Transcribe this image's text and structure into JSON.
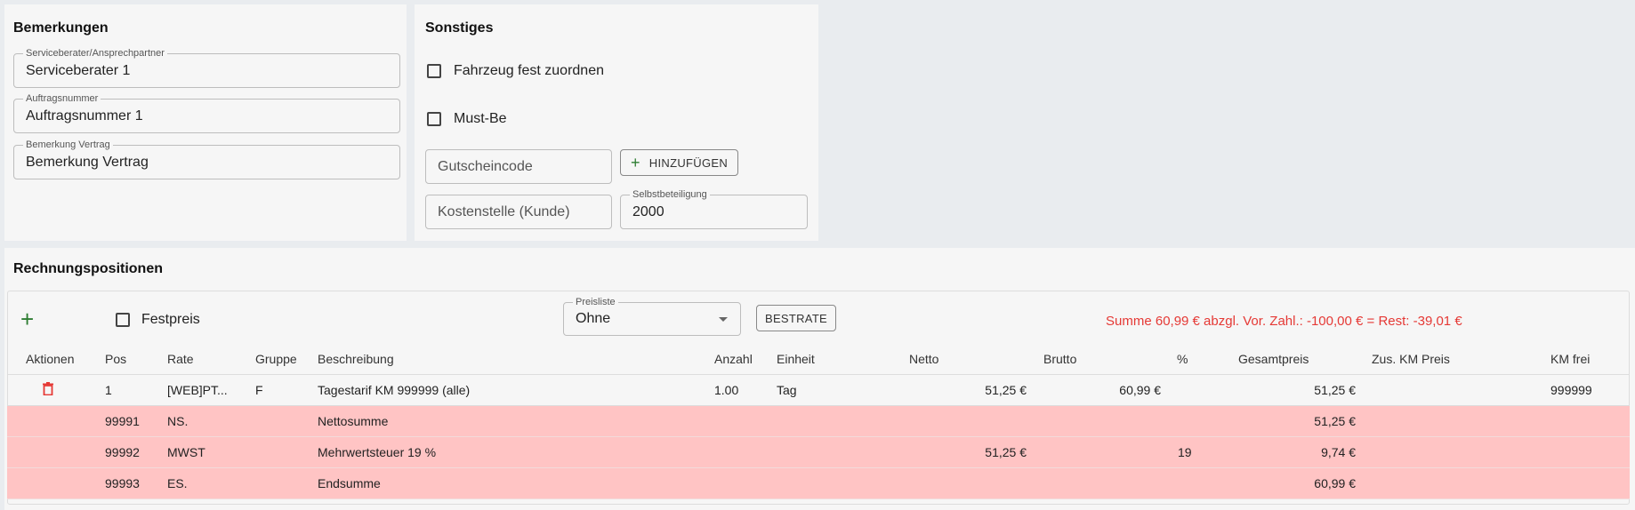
{
  "bemerkungen": {
    "title": "Bemerkungen",
    "fields": [
      {
        "label": "Serviceberater/Ansprechpartner",
        "value": "Serviceberater 1"
      },
      {
        "label": "Auftragsnummer",
        "value": "Auftragsnummer 1"
      },
      {
        "label": "Bemerkung Vertrag",
        "value": "Bemerkung Vertrag"
      }
    ]
  },
  "sonstiges": {
    "title": "Sonstiges",
    "checkbox_fahrzeug": "Fahrzeug fest zuordnen",
    "checkbox_mustbe": "Must-Be",
    "gutscheincode_placeholder": "Gutscheincode",
    "hinzufuegen_label": "HINZUFÜGEN",
    "kostenstelle_placeholder": "Kostenstelle (Kunde)",
    "selbstbeteiligung_label": "Selbstbeteiligung",
    "selbstbeteiligung_value": "2000"
  },
  "rechnung": {
    "title": "Rechnungspositionen",
    "festpreis_label": "Festpreis",
    "preisliste_label": "Preisliste",
    "preisliste_value": "Ohne",
    "bestrate_label": "BESTRATE",
    "summary": "Summe 60,99 € abzgl. Vor. Zahl.: -100,00 € = Rest: -39,01 €",
    "summary_color": "#e53935",
    "headers": [
      "Aktionen",
      "Pos",
      "Rate",
      "Gruppe",
      "Beschreibung",
      "Anzahl",
      "Einheit",
      "Netto",
      "Brutto",
      "%",
      "Gesamtpreis",
      "Zus. KM Preis",
      "KM frei"
    ],
    "rows": [
      {
        "pos": "1",
        "rate": "[WEB]PT...",
        "gruppe": "F",
        "beschreibung": "Tagestarif KM 999999 (alle)",
        "anzahl": "1.00",
        "einheit": "Tag",
        "netto": "51,25 €",
        "brutto": "60,99 €",
        "prozent": "",
        "gesamtpreis": "51,25 €",
        "zus_km": "",
        "km_frei": "999999"
      },
      {
        "pos": "99991",
        "rate": "NS.",
        "gruppe": "",
        "beschreibung": "Nettosumme",
        "anzahl": "",
        "einheit": "",
        "netto": "",
        "brutto": "",
        "prozent": "",
        "gesamtpreis": "51,25 €",
        "zus_km": "",
        "km_frei": ""
      },
      {
        "pos": "99992",
        "rate": "MWST",
        "gruppe": "",
        "beschreibung": "Mehrwertsteuer 19 %",
        "anzahl": "",
        "einheit": "",
        "netto": "51,25 €",
        "brutto": "",
        "prozent": "19",
        "gesamtpreis": "9,74 €",
        "zus_km": "",
        "km_frei": ""
      },
      {
        "pos": "99993",
        "rate": "ES.",
        "gruppe": "",
        "beschreibung": "Endsumme",
        "anzahl": "",
        "einheit": "",
        "netto": "",
        "brutto": "",
        "prozent": "",
        "gesamtpreis": "60,99 €",
        "zus_km": "",
        "km_frei": ""
      }
    ],
    "colors": {
      "summary_row_bg": "#ffc4c4",
      "add_icon": "#2e7d32",
      "delete_icon": "#e53935"
    }
  }
}
